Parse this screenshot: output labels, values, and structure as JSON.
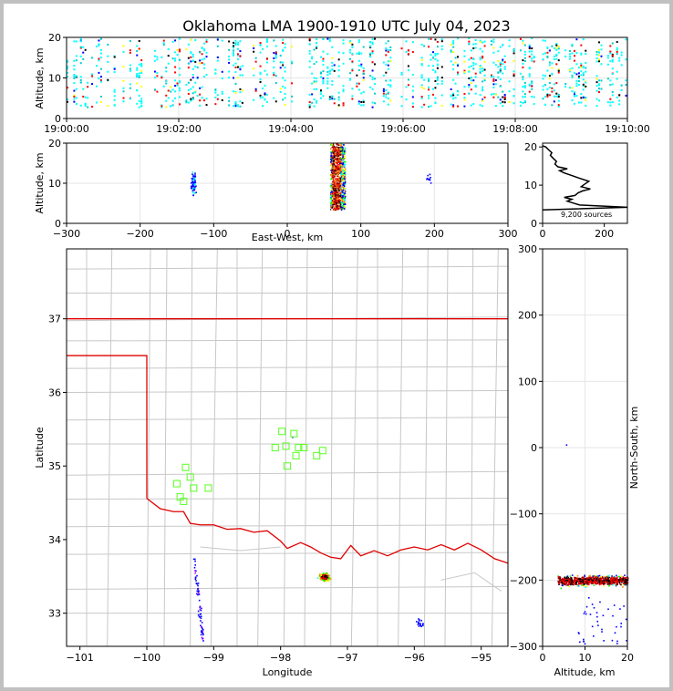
{
  "title": "Oklahoma LMA 1900-1910 UTC July 04, 2023",
  "chart_data": [
    {
      "panel": "time-height",
      "type": "scatter",
      "xlabel": "",
      "ylabel": "Altitude, km",
      "xticks": [
        "19:00:00",
        "19:02:00",
        "19:04:00",
        "19:06:00",
        "19:08:00",
        "19:10:00"
      ],
      "xlim_minutes": [
        0,
        10
      ],
      "ylim": [
        0,
        20
      ],
      "yticks": [
        0,
        10,
        20
      ],
      "grid": true
    },
    {
      "panel": "east-west-height",
      "type": "scatter",
      "xlabel": "East-West, km",
      "ylabel": "Altitude, km",
      "xlim": [
        -300,
        300
      ],
      "xticks": [
        -300,
        -200,
        -100,
        0,
        100,
        200,
        300
      ],
      "ylim": [
        0,
        20
      ],
      "yticks": [
        0,
        10,
        20
      ],
      "grid": true
    },
    {
      "panel": "altitude-histogram",
      "type": "line",
      "annotation": "9,200 sources",
      "xlim": [
        0,
        275
      ],
      "xticks": [
        0,
        200
      ],
      "ylim": [
        0,
        21
      ],
      "yticks": [
        0,
        10,
        20
      ],
      "profile": [
        [
          0,
          3.5
        ],
        [
          275,
          4.2
        ],
        [
          120,
          4.8
        ],
        [
          100,
          5.3
        ],
        [
          80,
          5.8
        ],
        [
          95,
          6.3
        ],
        [
          70,
          6.8
        ],
        [
          105,
          7.3
        ],
        [
          115,
          8.0
        ],
        [
          130,
          8.5
        ],
        [
          155,
          9.0
        ],
        [
          125,
          9.6
        ],
        [
          135,
          10.2
        ],
        [
          150,
          11.0
        ],
        [
          120,
          11.8
        ],
        [
          95,
          12.5
        ],
        [
          70,
          13.2
        ],
        [
          55,
          13.8
        ],
        [
          80,
          14.3
        ],
        [
          50,
          14.8
        ],
        [
          40,
          15.5
        ],
        [
          45,
          16.2
        ],
        [
          35,
          17.0
        ],
        [
          25,
          17.8
        ],
        [
          30,
          18.5
        ],
        [
          20,
          19.2
        ],
        [
          10,
          20.0
        ],
        [
          0,
          20.3
        ]
      ]
    },
    {
      "panel": "plan-view",
      "type": "scatter",
      "xlabel": "Longitude",
      "ylabel": "Latitude",
      "xlim": [
        -101.2,
        -94.6
      ],
      "xticks": [
        -101,
        -100,
        -99,
        -98,
        -97,
        -96,
        -95
      ],
      "ylim": [
        32.55,
        37.95
      ],
      "yticks": [
        33,
        34,
        35,
        36,
        37
      ],
      "stations": [
        [
          -99.42,
          34.98
        ],
        [
          -99.35,
          34.85
        ],
        [
          -99.55,
          34.76
        ],
        [
          -99.3,
          34.7
        ],
        [
          -99.08,
          34.7
        ],
        [
          -99.5,
          34.58
        ],
        [
          -99.45,
          34.52
        ],
        [
          -97.98,
          35.47
        ],
        [
          -97.8,
          35.44
        ],
        [
          -98.08,
          35.25
        ],
        [
          -97.92,
          35.27
        ],
        [
          -97.73,
          35.25
        ],
        [
          -97.65,
          35.25
        ],
        [
          -97.77,
          35.14
        ],
        [
          -97.46,
          35.14
        ],
        [
          -97.37,
          35.21
        ],
        [
          -97.9,
          35.0
        ]
      ]
    },
    {
      "panel": "north-south-height",
      "type": "scatter",
      "xlabel": "Altitude, km",
      "ylabel": "North-South, km",
      "xlim": [
        0,
        20
      ],
      "xticks": [
        0,
        10,
        20
      ],
      "ylim": [
        -300,
        300
      ],
      "yticks": [
        -300,
        -200,
        -100,
        0,
        100,
        200,
        300
      ],
      "grid": true
    }
  ]
}
